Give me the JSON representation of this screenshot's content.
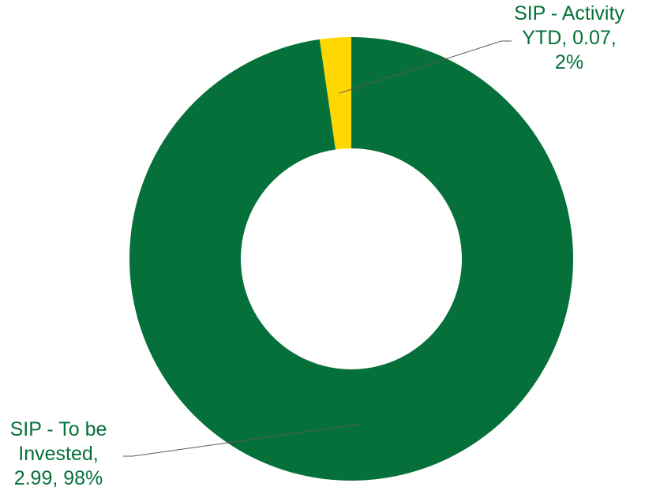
{
  "chart_data": {
    "type": "pie",
    "variant": "doughnut",
    "title": "",
    "slices": [
      {
        "name": "SIP - Activity YTD",
        "value": 0.07,
        "percent": 2,
        "color": "#FFD700",
        "label_lines": [
          "SIP - Activity",
          "YTD, 0.07,",
          "2%"
        ]
      },
      {
        "name": "SIP - To be Invested",
        "value": 2.99,
        "percent": 98,
        "color": "#057039",
        "label_lines": [
          "SIP - To be",
          "Invested,",
          "2.99, 98%"
        ]
      }
    ],
    "label_color": "#057039",
    "leader_line_color": "#595959",
    "background": "#FFFFFF",
    "legend": "none"
  }
}
